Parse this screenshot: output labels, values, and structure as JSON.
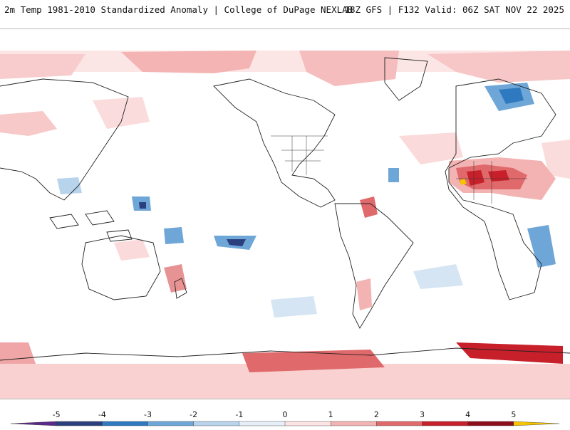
{
  "header": {
    "left_title": "2m Temp 1981-2010 Standardized Anomaly | College of DuPage NEXLAB",
    "right_title": "18Z GFS | F132 Valid: 06Z SAT NOV 22 2025"
  },
  "map": {
    "name": "Global 2m temperature standardized anomaly",
    "projection": "equirectangular"
  },
  "colorbar": {
    "ticks": [
      "-5",
      "-4",
      "-3",
      "-2",
      "-1",
      "0",
      "1",
      "2",
      "3",
      "4",
      "5"
    ],
    "colors": [
      "#5a2a8a",
      "#2b3f7f",
      "#2f79c0",
      "#6fa6d8",
      "#b8d3ec",
      "#e6eef8",
      "#fde4e4",
      "#f3b3b3",
      "#e0696b",
      "#c8202a",
      "#8e0f1c",
      "#f5c400"
    ]
  }
}
